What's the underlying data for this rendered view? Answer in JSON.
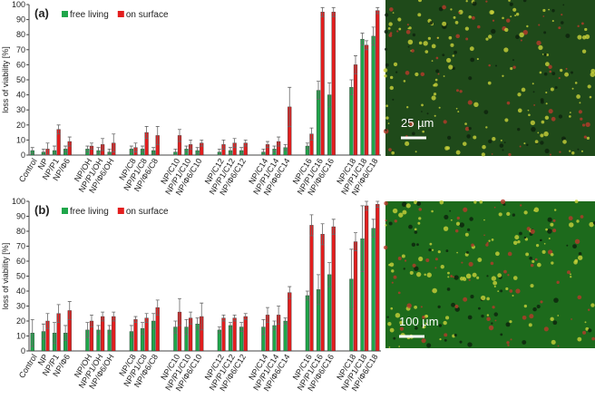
{
  "chart_data": [
    {
      "type": "bar",
      "panel_label": "(a)",
      "y_label": "loss of viability [%]",
      "categories": [
        "Control",
        "NP",
        "NP/P1",
        "NP/Φ6",
        null,
        "NP/OH",
        "NP/P1/OH",
        "NP/Φ6/OH",
        null,
        "NP/C8",
        "NP/P1/C8",
        "NP/Φ6/C8",
        null,
        "NP/C10",
        "NP/P1/C10",
        "NP/Φ6/C10",
        null,
        "NP/C12",
        "NP/P1/C12",
        "NP/Φ6/C12",
        null,
        "NP/C14",
        "NP/P1/C14",
        "NP/Φ6/C14",
        null,
        "NP/C16",
        "NP/P1/C16",
        "NP/Φ6/C16",
        null,
        "NP/C18",
        "NP/P1/C18",
        "NP/Φ6/C18"
      ],
      "series": [
        {
          "name": "free living",
          "color": "#1fa64a",
          "values": [
            3,
            2,
            3,
            4,
            null,
            4,
            3,
            2,
            null,
            4,
            4,
            3,
            null,
            2,
            4,
            3,
            null,
            2,
            3,
            3,
            null,
            2,
            4,
            5,
            null,
            6,
            43,
            40,
            null,
            45,
            77,
            79
          ],
          "errors": [
            2,
            2,
            3,
            2,
            null,
            2,
            2,
            2,
            null,
            2,
            2,
            2,
            null,
            2,
            2,
            2,
            null,
            2,
            2,
            2,
            null,
            2,
            2,
            2,
            null,
            2,
            6,
            8,
            null,
            5,
            4,
            6
          ]
        },
        {
          "name": "on surface",
          "color": "#e31e1e",
          "values": [
            null,
            4,
            17,
            9,
            null,
            6,
            7,
            8,
            null,
            5,
            15,
            13,
            null,
            13,
            7,
            8,
            null,
            7,
            8,
            8,
            null,
            7,
            9,
            32,
            null,
            14,
            95,
            95,
            null,
            60,
            73,
            96
          ],
          "errors": [
            null,
            4,
            3,
            3,
            null,
            2,
            4,
            6,
            null,
            3,
            4,
            6,
            null,
            4,
            3,
            2,
            null,
            3,
            3,
            2,
            null,
            2,
            3,
            13,
            null,
            4,
            3,
            3,
            null,
            6,
            3,
            2
          ]
        }
      ],
      "ylim": [
        0,
        100
      ],
      "yticks": [
        0,
        10,
        20,
        30,
        40,
        50,
        60,
        70,
        80,
        90,
        100
      ],
      "legend": "upper left"
    },
    {
      "type": "bar",
      "panel_label": "(b)",
      "y_label": "loss of viability [%]",
      "categories": [
        "Control",
        "NP",
        "NP/P1",
        "NP/Φ6",
        null,
        "NP/OH",
        "NP/P1/OH",
        "NP/Φ6/OH",
        null,
        "NP/C8",
        "NP/P1/C8",
        "NP/Φ6/C8",
        null,
        "NP/C10",
        "NP/P1/C10",
        "NP/Φ6/C10",
        null,
        "NP/C12",
        "NP/P1/C12",
        "NP/Φ6/C12",
        null,
        "NP/C14",
        "NP/P1/C14",
        "NP/Φ6/C14",
        null,
        "NP/C16",
        "NP/P1/C16",
        "NP/Φ6/C16",
        null,
        "NP/C18",
        "NP/P1/C18",
        "NP/Φ6/C18"
      ],
      "series": [
        {
          "name": "free living",
          "color": "#1fa64a",
          "values": [
            12,
            13,
            12,
            12,
            null,
            14,
            14,
            14,
            null,
            13,
            15,
            20,
            null,
            16,
            16,
            18,
            null,
            14,
            17,
            16,
            null,
            16,
            17,
            20,
            null,
            37,
            41,
            51,
            null,
            48,
            75,
            82
          ],
          "errors": [
            9,
            5,
            7,
            5,
            null,
            5,
            3,
            3,
            null,
            4,
            4,
            5,
            null,
            4,
            5,
            4,
            null,
            2,
            2,
            3,
            null,
            5,
            3,
            2,
            null,
            3,
            10,
            8,
            null,
            20,
            22,
            6
          ]
        },
        {
          "name": "on surface",
          "color": "#e31e1e",
          "values": [
            null,
            20,
            25,
            27,
            null,
            20,
            23,
            23,
            null,
            21,
            22,
            29,
            null,
            26,
            22,
            23,
            null,
            22,
            22,
            23,
            null,
            24,
            24,
            39,
            null,
            84,
            78,
            83,
            null,
            73,
            97,
            98
          ],
          "errors": [
            null,
            5,
            6,
            6,
            null,
            4,
            3,
            3,
            null,
            2,
            3,
            5,
            null,
            9,
            4,
            9,
            null,
            2,
            2,
            2,
            null,
            5,
            6,
            4,
            null,
            7,
            7,
            5,
            null,
            6,
            3,
            2
          ]
        }
      ],
      "ylim": [
        0,
        100
      ],
      "yticks": [
        0,
        10,
        20,
        30,
        40,
        50,
        60,
        70,
        80,
        90,
        100
      ],
      "legend": "upper left"
    }
  ],
  "images": [
    {
      "scale_bar": "25 µm"
    },
    {
      "scale_bar": "100 µm"
    }
  ]
}
